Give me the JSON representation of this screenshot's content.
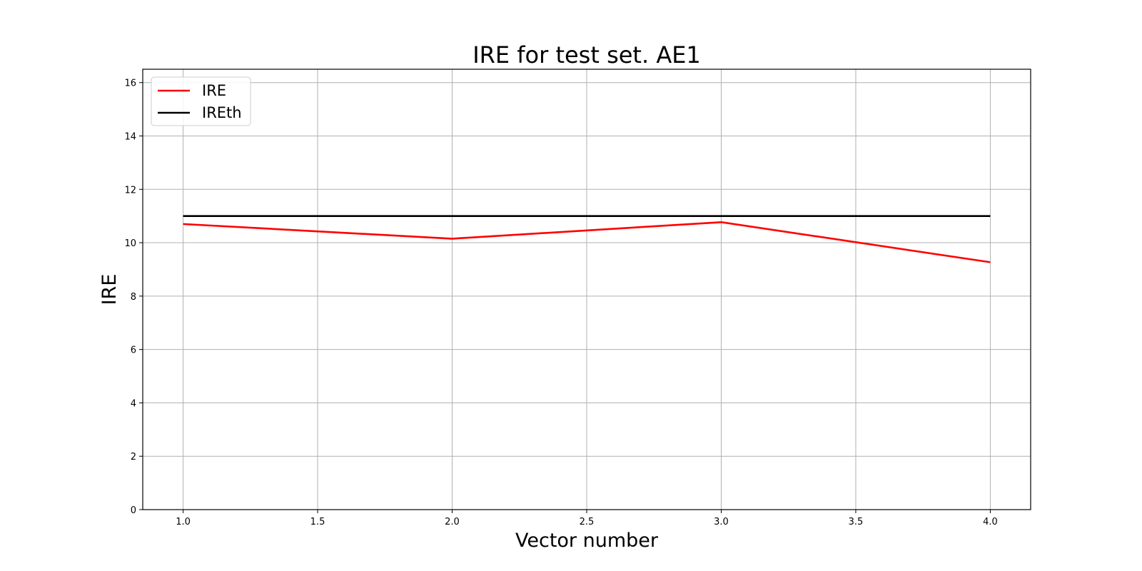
{
  "chart_data": {
    "type": "line",
    "title": "IRE for test set. AE1",
    "xlabel": "Vector number",
    "ylabel": "IRE",
    "xlim": [
      0.85,
      4.15
    ],
    "ylim": [
      0,
      16.5
    ],
    "xticks": [
      1.0,
      1.5,
      2.0,
      2.5,
      3.0,
      3.5,
      4.0
    ],
    "xtick_labels": [
      "1.0",
      "1.5",
      "2.0",
      "2.5",
      "3.0",
      "3.5",
      "4.0"
    ],
    "yticks": [
      0,
      2,
      4,
      6,
      8,
      10,
      12,
      14,
      16
    ],
    "ytick_labels": [
      "0",
      "2",
      "4",
      "6",
      "8",
      "10",
      "12",
      "14",
      "16"
    ],
    "grid": true,
    "legend_position": "top-left",
    "x": [
      1,
      2,
      3,
      4
    ],
    "series": [
      {
        "name": "IRE",
        "color": "#ff0000",
        "values": [
          10.7,
          10.15,
          10.77,
          9.27
        ]
      },
      {
        "name": "IREth",
        "color": "#000000",
        "values": [
          11.0,
          11.0,
          11.0,
          11.0
        ]
      }
    ]
  }
}
